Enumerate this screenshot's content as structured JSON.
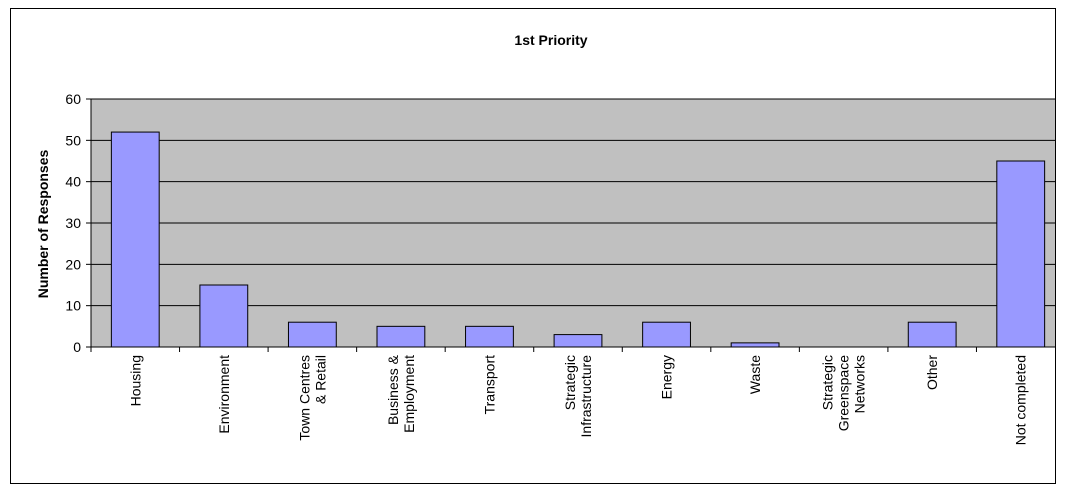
{
  "chart_data": {
    "type": "bar",
    "title": "1st Priority",
    "xlabel": "",
    "ylabel": "Number of Responses",
    "ylim": [
      0,
      60
    ],
    "yticks": [
      0,
      10,
      20,
      30,
      40,
      50,
      60
    ],
    "grid": true,
    "legend": "none",
    "categories": [
      [
        "Housing"
      ],
      [
        "Environment"
      ],
      [
        "Town Centres",
        "& Retail"
      ],
      [
        "Business &",
        "Employment"
      ],
      [
        "Transport"
      ],
      [
        "Strategic",
        "Infrastructure"
      ],
      [
        "Energy"
      ],
      [
        "Waste"
      ],
      [
        "Strategic",
        "Greenspace",
        "Networks"
      ],
      [
        "Other"
      ],
      [
        "Not completed"
      ]
    ],
    "values": [
      52,
      15,
      6,
      5,
      5,
      3,
      6,
      1,
      0,
      6,
      45
    ],
    "colors": {
      "plot_background": "#c0c0c0",
      "bar_fill": "#9999ff",
      "bar_stroke": "#000000",
      "gridline": "#000000"
    }
  }
}
